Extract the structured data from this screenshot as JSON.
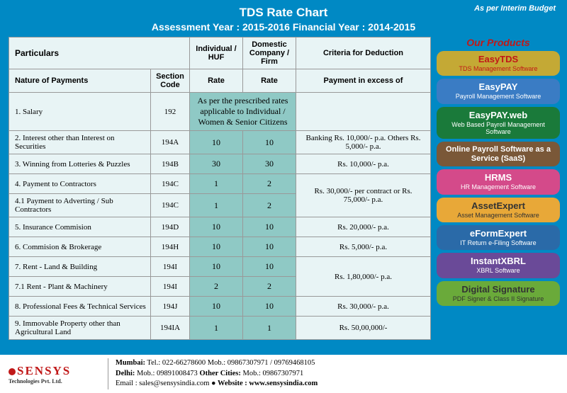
{
  "top_note": "As per Interim Budget",
  "header": {
    "title": "TDS Rate Chart",
    "subtitle": "Assessment Year : 2015-2016 Financial Year : 2014-2015"
  },
  "table": {
    "headers": {
      "particulars": "Particulars",
      "individual": "Individual / HUF",
      "domestic": "Domestic Company / Firm",
      "criteria": "Criteria for Deduction",
      "nature": "Nature of Payments",
      "section": "Section Code",
      "rate": "Rate",
      "payment": "Payment in excess of"
    },
    "rows": [
      {
        "n": "1. Salary",
        "sec": "192",
        "merged": "As per the prescribed rates applicable to Individual / Women & Senior Citizens",
        "crit": ""
      },
      {
        "n": "2. Interest other than Interest on Securities",
        "sec": "194A",
        "r1": "10",
        "r2": "10",
        "crit": "Banking Rs. 10,000/- p.a. Others Rs. 5,000/- p.a."
      },
      {
        "n": "3. Winning from Lotteries & Puzzles",
        "sec": "194B",
        "r1": "30",
        "r2": "30",
        "crit": "Rs. 10,000/- p.a."
      },
      {
        "n": "4. Payment to Contractors",
        "sec": "194C",
        "r1": "1",
        "r2": "2",
        "crit_merge": "Rs. 30,000/- per contract or Rs. 75,000/- p.a.",
        "rowspan": 2
      },
      {
        "n": "4.1 Payment to Adverting / Sub Contractors",
        "sec": "194C",
        "r1": "1",
        "r2": "2"
      },
      {
        "n": "5. Insurance Commision",
        "sec": "194D",
        "r1": "10",
        "r2": "10",
        "crit": "Rs. 20,000/- p.a."
      },
      {
        "n": "6. Commision & Brokerage",
        "sec": "194H",
        "r1": "10",
        "r2": "10",
        "crit": "Rs. 5,000/- p.a."
      },
      {
        "n": "7. Rent - Land & Building",
        "sec": "194I",
        "r1": "10",
        "r2": "10",
        "crit_merge": "Rs. 1,80,000/- p.a.",
        "rowspan": 2
      },
      {
        "n": "7.1 Rent - Plant & Machinery",
        "sec": "194I",
        "r1": "2",
        "r2": "2"
      },
      {
        "n": "8. Professional Fees & Technical Services",
        "sec": "194J",
        "r1": "10",
        "r2": "10",
        "crit": "Rs. 30,000/- p.a."
      },
      {
        "n": "9. Immovable Property other than Agricultural Land",
        "sec": "194IA",
        "r1": "1",
        "r2": "1",
        "crit": "Rs. 50,00,000/-"
      }
    ]
  },
  "sidebar": {
    "title": "Our Products",
    "items": [
      {
        "name": "EasyTDS",
        "desc": "TDS Management Software",
        "bg": "#c4a935",
        "color": "#c01818",
        "nameColor": "#c01818"
      },
      {
        "name": "EasyPAY",
        "desc": "Payroll Management Software",
        "bg": "#3a7cc4",
        "color": "#fff"
      },
      {
        "name": "EasyPAY.web",
        "desc": "Web Based Payroll Management Software",
        "bg": "#1a7a3a",
        "color": "#fff"
      },
      {
        "name": "Online Payroll Software as a Service (SaaS)",
        "desc": "",
        "bg": "#7a5838",
        "color": "#fff",
        "single": true
      },
      {
        "name": "HRMS",
        "desc": "HR Management Software",
        "bg": "#d44a8a",
        "color": "#fff"
      },
      {
        "name": "AssetExpert",
        "desc": "Asset Management Software",
        "bg": "#e8a838",
        "color": "#333",
        "nameColor": "#333"
      },
      {
        "name": "eFormExpert",
        "desc": "IT Return e-Filing Software",
        "bg": "#2a6aa8",
        "color": "#fff"
      },
      {
        "name": "InstantXBRL",
        "desc": "XBRL Software",
        "bg": "#6a4a98",
        "color": "#fff"
      },
      {
        "name": "Digital Signature",
        "desc": "PDF Signer & Class II Signature",
        "bg": "#6aaa3a",
        "color": "#333",
        "nameColor": "#333"
      }
    ]
  },
  "footer": {
    "logo_name": "SENSYS",
    "logo_sub": "Technologies Pvt. Ltd.",
    "line1": "Mumbai: Tel.: 022-66278600 Mob.: 09867307971 / 09769468105",
    "line2": "Delhi: Mob.: 09891008473 Other Cities: Mob.: 09867307971",
    "line3": "Email : sales@sensysindia.com ● Website : www.sensysindia.com"
  }
}
